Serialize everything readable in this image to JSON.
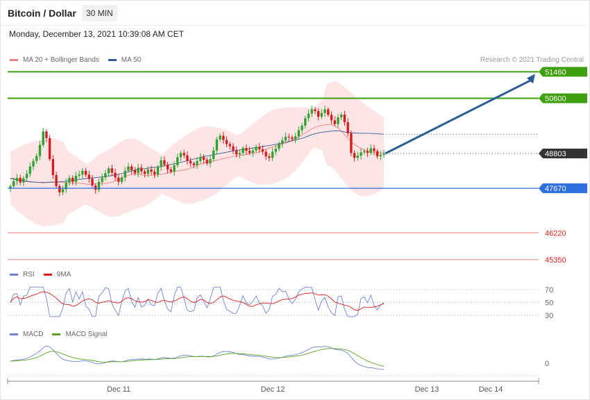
{
  "header": {
    "title": "Bitcoin / Dollar",
    "timeframe": "30 MIN",
    "datetime": "Monday, December 13, 2021 10:39:08 AM CET"
  },
  "price_legend": [
    {
      "name": "MA 20 + Bollinger Bands",
      "color": "#f08080"
    },
    {
      "name": "MA 50",
      "color": "#2e5c99"
    }
  ],
  "credit": "Research © 2021 Trading Central",
  "rsi_legend": [
    {
      "name": "RSI",
      "color": "#6a84d8"
    },
    {
      "name": "9MA",
      "color": "#dd1a1a"
    }
  ],
  "macd_legend": [
    {
      "name": "MACD",
      "color": "#6a84d8"
    },
    {
      "name": "MACD Signal",
      "color": "#5aa21e"
    }
  ],
  "colors": {
    "up": "#2fa12f",
    "down": "#d21e1e",
    "band": "#fde0e0",
    "resistance": "#3ea00e",
    "pivot": "#2f6fe0",
    "support": "#f08a8a",
    "last": "#333333"
  },
  "chart_data": [
    {
      "type": "candlestick",
      "title": "Bitcoin / Dollar",
      "timeframe": "30 MIN",
      "xlabel_ticks": [
        "Dec 11",
        "Dec 12",
        "Dec 13",
        "Dec 14"
      ],
      "ylim": [
        45000,
        51700
      ],
      "close_series": [
        47740,
        47900,
        48010,
        47860,
        48000,
        48140,
        48380,
        48560,
        48720,
        49080,
        49520,
        49300,
        48620,
        48100,
        47740,
        47540,
        47640,
        47860,
        48010,
        47880,
        48080,
        48120,
        48240,
        48110,
        47980,
        47760,
        47620,
        47880,
        48020,
        48160,
        48320,
        48180,
        48020,
        47880,
        48020,
        48240,
        48380,
        48260,
        48160,
        48340,
        48220,
        48140,
        48280,
        48210,
        48120,
        48360,
        48580,
        48440,
        48280,
        48210,
        48420,
        48680,
        48820,
        48740,
        48560,
        48480,
        48420,
        48560,
        48680,
        48600,
        48480,
        48620,
        48900,
        49260,
        49380,
        49240,
        49110,
        49040,
        48900,
        48770,
        48820,
        48980,
        48890,
        48820,
        48900,
        49020,
        48940,
        48860,
        48710,
        48660,
        48860,
        48960,
        49120,
        49230,
        49350,
        49330,
        49270,
        49360,
        49560,
        49710,
        49950,
        50100,
        50240,
        50180,
        50000,
        50120,
        50240,
        50060,
        49880,
        49760,
        49980,
        50070,
        49820,
        49460,
        48820,
        48660,
        48730,
        48840,
        48880,
        48820,
        48970,
        48880,
        48710,
        48760,
        48800
      ],
      "ma20_series": [
        48000,
        47980,
        47950,
        47940,
        47900,
        47890,
        47870,
        47860,
        47840,
        47860,
        47880,
        47880,
        47870,
        47860,
        47850,
        47840,
        47840,
        47830,
        47820,
        47790,
        47810,
        47830,
        47840,
        47830,
        47840,
        47880,
        47930,
        47990,
        48060,
        48100,
        48130,
        48130,
        48110,
        48090,
        48090,
        48090,
        48110,
        48130,
        48160,
        48190,
        48220,
        48240,
        48260,
        48290,
        48330,
        48380,
        48440,
        48480,
        48510,
        48540,
        48570,
        48610,
        48640,
        48670,
        48700,
        48720,
        48740,
        48760,
        48780,
        48810,
        48830,
        48870,
        48930,
        48980,
        49020,
        49060,
        49100,
        49140,
        49180,
        49250,
        49320,
        49400,
        49480,
        49570,
        49640,
        49690,
        49720,
        49740,
        49750,
        49710,
        49610,
        49480,
        49330,
        49190,
        49080,
        49000,
        48930,
        48880,
        48850,
        48830,
        48820,
        48820
      ],
      "ma50_series": [
        47990,
        47960,
        47930,
        47900,
        47880,
        47870,
        47860,
        47860,
        47860,
        47870,
        47880,
        47890,
        47910,
        47930,
        47950,
        47970,
        47990,
        48000,
        48020,
        48040,
        48060,
        48080,
        48110,
        48140,
        48180,
        48220,
        48260,
        48290,
        48310,
        48330,
        48350,
        48370,
        48400,
        48430,
        48460,
        48490,
        48530,
        48570,
        48610,
        48650,
        48690,
        48720,
        48750,
        48780,
        48810,
        48840,
        48870,
        48900,
        48920,
        48940,
        48960,
        48990,
        49010,
        49040,
        49060,
        49090,
        49120,
        49160,
        49190,
        49220,
        49260,
        49300,
        49360,
        49420,
        49460,
        49490,
        49510,
        49530,
        49540,
        49530,
        49500,
        49480,
        49470,
        49460,
        49460,
        49460,
        49450,
        49440,
        49430
      ],
      "levels": [
        {
          "label": "51460",
          "value": 51460,
          "kind": "resistance"
        },
        {
          "label": "50600",
          "value": 50600,
          "kind": "resistance"
        },
        {
          "label": "48803",
          "value": 48803,
          "kind": "last"
        },
        {
          "label": "47670",
          "value": 47670,
          "kind": "pivot"
        },
        {
          "label": "46220",
          "value": 46220,
          "kind": "support"
        },
        {
          "label": "45350",
          "value": 45350,
          "kind": "support"
        }
      ],
      "forecast_arrow": {
        "from": 48803,
        "to": 51460
      }
    },
    {
      "type": "line",
      "series": [
        {
          "name": "RSI"
        },
        {
          "name": "9MA"
        }
      ],
      "y_ticks": [
        70,
        50,
        30
      ],
      "ylim": [
        10,
        90
      ]
    },
    {
      "type": "line",
      "series": [
        {
          "name": "MACD"
        },
        {
          "name": "MACD Signal"
        }
      ],
      "y_ticks": [
        0
      ]
    }
  ]
}
